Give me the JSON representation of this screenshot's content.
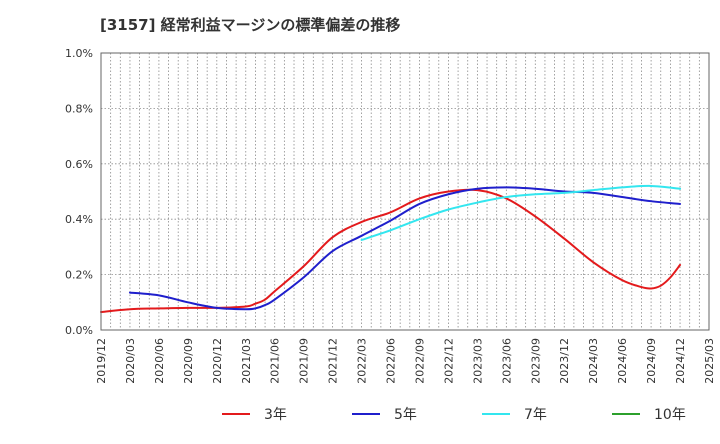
{
  "chart_data": {
    "type": "line",
    "title": "[3157]  経常利益マージンの標準偏差の推移",
    "xlabel": "",
    "ylabel": "",
    "y_unit": "%",
    "ylim": [
      0,
      1.0
    ],
    "yticks": [
      "0.0%",
      "0.2%",
      "0.4%",
      "0.6%",
      "0.8%",
      "1.0%"
    ],
    "ytick_values": [
      0,
      0.2,
      0.4,
      0.6,
      0.8,
      1.0
    ],
    "xticks": [
      "2019/12",
      "2020/03",
      "2020/06",
      "2020/09",
      "2020/12",
      "2021/03",
      "2021/06",
      "2021/09",
      "2021/12",
      "2022/03",
      "2022/06",
      "2022/09",
      "2022/12",
      "2023/03",
      "2023/06",
      "2023/09",
      "2023/12",
      "2024/03",
      "2024/06",
      "2024/09",
      "2024/12",
      "2025/03"
    ],
    "grid": true,
    "legend_position": "bottom",
    "series": [
      {
        "name": "3年",
        "color": "#e31a1c",
        "points": [
          [
            "2019/12",
            0.065
          ],
          [
            "2020/03",
            0.075
          ],
          [
            "2020/06",
            0.078
          ],
          [
            "2020/09",
            0.08
          ],
          [
            "2020/12",
            0.08
          ],
          [
            "2021/03",
            0.085
          ],
          [
            "2021/04",
            0.095
          ],
          [
            "2021/05",
            0.11
          ],
          [
            "2021/06",
            0.14
          ],
          [
            "2021/09",
            0.23
          ],
          [
            "2021/12",
            0.335
          ],
          [
            "2022/03",
            0.39
          ],
          [
            "2022/06",
            0.425
          ],
          [
            "2022/09",
            0.475
          ],
          [
            "2022/12",
            0.5
          ],
          [
            "2023/03",
            0.505
          ],
          [
            "2023/06",
            0.475
          ],
          [
            "2023/09",
            0.41
          ],
          [
            "2023/12",
            0.33
          ],
          [
            "2024/03",
            0.245
          ],
          [
            "2024/06",
            0.18
          ],
          [
            "2024/08",
            0.155
          ],
          [
            "2024/09",
            0.15
          ],
          [
            "2024/10",
            0.16
          ],
          [
            "2024/11",
            0.19
          ],
          [
            "2024/12",
            0.235
          ]
        ]
      },
      {
        "name": "5年",
        "color": "#1f1fcc",
        "points": [
          [
            "2020/03",
            0.135
          ],
          [
            "2020/06",
            0.125
          ],
          [
            "2020/09",
            0.1
          ],
          [
            "2020/12",
            0.08
          ],
          [
            "2021/03",
            0.075
          ],
          [
            "2021/04",
            0.078
          ],
          [
            "2021/05",
            0.09
          ],
          [
            "2021/06",
            0.11
          ],
          [
            "2021/09",
            0.19
          ],
          [
            "2021/12",
            0.285
          ],
          [
            "2022/03",
            0.34
          ],
          [
            "2022/06",
            0.395
          ],
          [
            "2022/09",
            0.455
          ],
          [
            "2022/12",
            0.49
          ],
          [
            "2023/03",
            0.51
          ],
          [
            "2023/06",
            0.515
          ],
          [
            "2023/09",
            0.51
          ],
          [
            "2023/12",
            0.5
          ],
          [
            "2024/03",
            0.495
          ],
          [
            "2024/06",
            0.48
          ],
          [
            "2024/09",
            0.465
          ],
          [
            "2024/12",
            0.455
          ]
        ]
      },
      {
        "name": "7年",
        "color": "#33e6ef",
        "points": [
          [
            "2022/03",
            0.325
          ],
          [
            "2022/06",
            0.36
          ],
          [
            "2022/09",
            0.4
          ],
          [
            "2022/12",
            0.435
          ],
          [
            "2023/03",
            0.46
          ],
          [
            "2023/06",
            0.48
          ],
          [
            "2023/09",
            0.49
          ],
          [
            "2023/12",
            0.495
          ],
          [
            "2024/03",
            0.505
          ],
          [
            "2024/06",
            0.515
          ],
          [
            "2024/09",
            0.52
          ],
          [
            "2024/12",
            0.51
          ]
        ]
      },
      {
        "name": "10年",
        "color": "#2ca02c",
        "points": []
      }
    ]
  }
}
